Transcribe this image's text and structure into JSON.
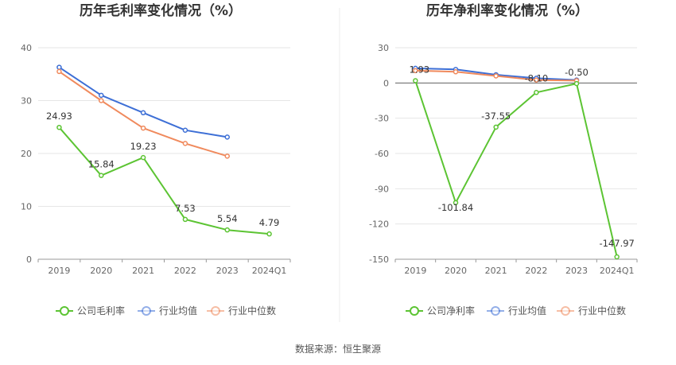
{
  "source": "数据来源：恒生聚源",
  "chart_data": [
    {
      "type": "line",
      "title": "历年毛利率变化情况（%）",
      "categories": [
        "2019",
        "2020",
        "2021",
        "2022",
        "2023",
        "2024Q1"
      ],
      "ylim": [
        0,
        40
      ],
      "yticks": [
        0,
        10,
        20,
        30,
        40
      ],
      "grid": true,
      "legend_position": "bottom",
      "series": [
        {
          "name": "公司毛利率",
          "color": "#5cc433",
          "labeled": true,
          "values": [
            24.93,
            15.84,
            19.23,
            7.53,
            5.54,
            4.79
          ],
          "labels": [
            "24.93",
            "15.84",
            "19.23",
            "7.53",
            "5.54",
            "4.79"
          ]
        },
        {
          "name": "行业均值",
          "color": "#3d6fd6",
          "labeled": false,
          "values": [
            36.3,
            31.0,
            27.7,
            24.4,
            23.1,
            null
          ]
        },
        {
          "name": "行业中位数",
          "color": "#f08a5d",
          "labeled": false,
          "values": [
            35.5,
            30.0,
            24.8,
            21.9,
            19.5,
            null
          ]
        }
      ]
    },
    {
      "type": "line",
      "title": "历年净利率变化情况（%）",
      "categories": [
        "2019",
        "2020",
        "2021",
        "2022",
        "2023",
        "2024Q1"
      ],
      "ylim": [
        -150,
        30
      ],
      "yticks": [
        -150,
        -120,
        -90,
        -60,
        -30,
        0,
        30
      ],
      "grid": true,
      "legend_position": "bottom",
      "series": [
        {
          "name": "公司净利率",
          "color": "#5cc433",
          "labeled": true,
          "values": [
            1.93,
            -101.84,
            -37.55,
            -8.1,
            -0.5,
            -147.97
          ],
          "labels": [
            "1.93",
            "-101.84",
            "-37.55",
            "-8.10",
            "-0.50",
            "-147.97"
          ]
        },
        {
          "name": "行业均值",
          "color": "#3d6fd6",
          "labeled": false,
          "values": [
            12.5,
            11.5,
            7.0,
            4.0,
            2.5,
            null
          ]
        },
        {
          "name": "行业中位数",
          "color": "#f08a5d",
          "labeled": false,
          "values": [
            10.5,
            9.5,
            6.0,
            2.5,
            2.0,
            null
          ]
        }
      ]
    }
  ]
}
